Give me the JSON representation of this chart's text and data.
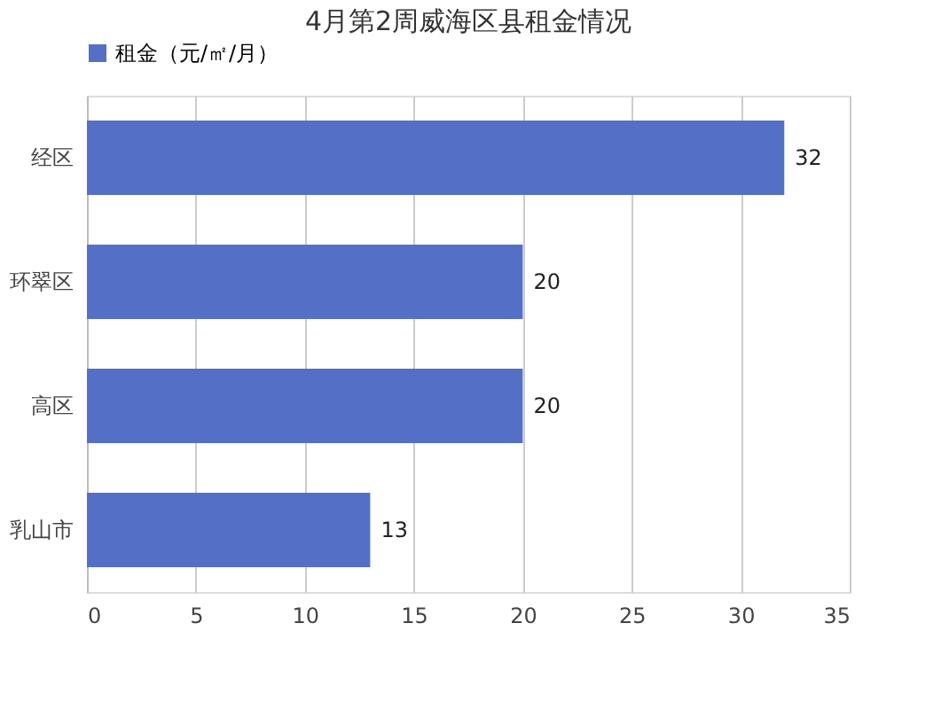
{
  "chart_data": {
    "type": "bar",
    "orientation": "horizontal",
    "title": "4月第2周威海区县租金情况",
    "categories": [
      "经区",
      "环翠区",
      "高区",
      "乳山市"
    ],
    "series": [
      {
        "name": "租金（元/㎡/月）",
        "color": "#5470c6",
        "values": [
          32,
          20,
          20,
          13
        ]
      }
    ],
    "xlim": [
      0,
      35
    ],
    "xticks": [
      0,
      5,
      10,
      15,
      20,
      25,
      30,
      35
    ],
    "grid": "x",
    "legend": "top",
    "data_labels": true
  }
}
